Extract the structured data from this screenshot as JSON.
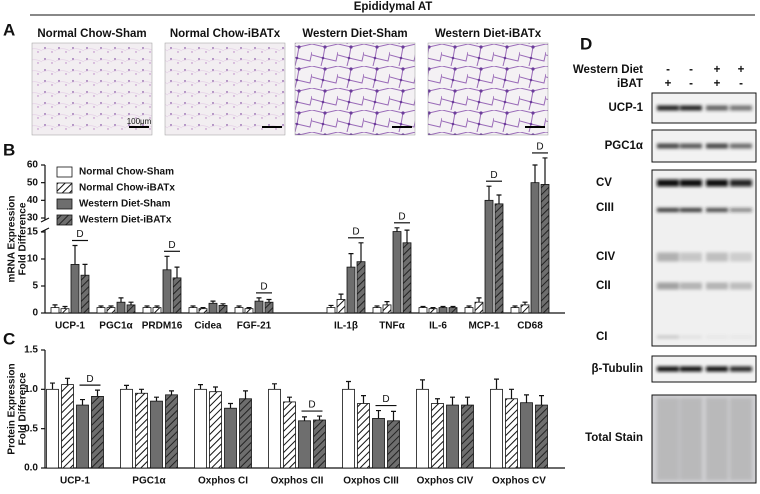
{
  "figure": {
    "title": "Epididymal AT",
    "panel_labels": [
      "A",
      "B",
      "C",
      "D"
    ]
  },
  "panel_a": {
    "images": [
      "Normal Chow-Sham",
      "Normal Chow-iBATx",
      "Western Diet-Sham",
      "Western Diet-iBATx"
    ],
    "scale_bar": "100μm"
  },
  "panel_d": {
    "rows": [
      {
        "label": "Western Diet",
        "signs": [
          "-",
          "-",
          "+",
          "+"
        ]
      },
      {
        "label": "iBAT",
        "signs": [
          "+",
          "-",
          "+",
          "-"
        ]
      }
    ],
    "blots": [
      "UCP-1",
      "PGC1α",
      "CV",
      "CIII",
      "CIV",
      "CII",
      "CI",
      "β-Tubulin",
      "Total Stain"
    ]
  },
  "chart_data": [
    {
      "type": "bar",
      "y_label": [
        "mRNA Expression",
        "Fold Difference"
      ],
      "categories": [
        "UCP-1",
        "PGC1α",
        "PRDM16",
        "Cidea",
        "FGF-21",
        "IL-1β",
        "TNFα",
        "IL-6",
        "MCP-1",
        "CD68"
      ],
      "ylim": [
        0,
        60
      ],
      "y_break": [
        15,
        30
      ],
      "yticks": [
        0,
        5,
        10,
        15,
        30,
        40,
        50,
        60
      ],
      "legend": "upper left",
      "series": [
        {
          "name": "Normal Chow-Sham",
          "color": "#ffffff",
          "hatch": false,
          "values": [
            1,
            1,
            1,
            1,
            1,
            1,
            1,
            1,
            1,
            1
          ],
          "errors": [
            0.5,
            0.3,
            0.3,
            0.3,
            0.3,
            0.4,
            0.3,
            0.2,
            0.3,
            0.3
          ]
        },
        {
          "name": "Normal Chow-iBATx",
          "color": "#ffffff",
          "hatch": true,
          "values": [
            0.8,
            1,
            1,
            0.8,
            0.8,
            2.5,
            1.5,
            0.8,
            2,
            1.5
          ],
          "errors": [
            0.4,
            0.3,
            0.3,
            0.2,
            0.2,
            1,
            0.6,
            0.2,
            0.8,
            0.5
          ]
        },
        {
          "name": "Western Diet-Sham",
          "color": "#6e6e6e",
          "hatch": false,
          "values": [
            9,
            2,
            8,
            1.8,
            2.2,
            8.5,
            15.5,
            1,
            40,
            50
          ],
          "errors": [
            3.5,
            0.8,
            2.5,
            0.4,
            0.6,
            2.5,
            4,
            0.2,
            8,
            10
          ]
        },
        {
          "name": "Western Diet-iBATx",
          "color": "#6e6e6e",
          "hatch": true,
          "values": [
            7,
            1.5,
            6.5,
            1.4,
            2,
            9.5,
            13,
            1,
            38,
            49
          ],
          "errors": [
            2,
            0.5,
            2,
            0.3,
            0.5,
            3.5,
            4,
            0.2,
            5,
            15
          ]
        }
      ],
      "annotations": [
        {
          "text": "D",
          "category": "UCP-1"
        },
        {
          "text": "D",
          "category": "PRDM16"
        },
        {
          "text": "D",
          "category": "FGF-21"
        },
        {
          "text": "D",
          "category": "IL-1β"
        },
        {
          "text": "D",
          "category": "TNFα"
        },
        {
          "text": "D",
          "category": "MCP-1"
        },
        {
          "text": "D",
          "category": "CD68"
        }
      ]
    },
    {
      "type": "bar",
      "y_label": [
        "Protein Expression",
        "Fold Difference"
      ],
      "categories": [
        "UCP-1",
        "PGC1α",
        "Oxphos CI",
        "Oxphos CII",
        "Oxphos CIII",
        "Oxphos CIV",
        "Oxphos CV"
      ],
      "ylim": [
        0,
        1.5
      ],
      "yticks": [
        {
          "value": 0,
          "label": "0.0"
        },
        {
          "value": 0.5,
          "label": "0.5"
        },
        {
          "value": 1,
          "label": "1.0"
        },
        {
          "value": 1.5,
          "label": "1.5"
        }
      ],
      "series": [
        {
          "name": "Normal Chow-Sham",
          "color": "#ffffff",
          "hatch": false,
          "values": [
            1,
            1,
            1,
            1,
            1,
            1,
            1
          ],
          "errors": [
            0.08,
            0.05,
            0.06,
            0.07,
            0.1,
            0.12,
            0.13
          ]
        },
        {
          "name": "Normal Chow-iBATx",
          "color": "#ffffff",
          "hatch": true,
          "values": [
            1.06,
            0.95,
            0.97,
            0.84,
            0.82,
            0.82,
            0.88
          ],
          "errors": [
            0.08,
            0.05,
            0.06,
            0.06,
            0.1,
            0.06,
            0.12
          ]
        },
        {
          "name": "Western Diet-Sham",
          "color": "#6e6e6e",
          "hatch": false,
          "values": [
            0.8,
            0.85,
            0.76,
            0.6,
            0.63,
            0.8,
            0.83
          ],
          "errors": [
            0.07,
            0.05,
            0.06,
            0.05,
            0.1,
            0.1,
            0.1
          ]
        },
        {
          "name": "Western Diet-iBATx",
          "color": "#6e6e6e",
          "hatch": true,
          "values": [
            0.91,
            0.93,
            0.88,
            0.61,
            0.6,
            0.8,
            0.8
          ],
          "errors": [
            0.08,
            0.05,
            0.1,
            0.05,
            0.12,
            0.1,
            0.12
          ]
        }
      ],
      "annotations": [
        {
          "text": "D",
          "category": "UCP-1"
        },
        {
          "text": "D",
          "category": "Oxphos CII"
        },
        {
          "text": "D",
          "category": "Oxphos CIII"
        }
      ]
    }
  ]
}
